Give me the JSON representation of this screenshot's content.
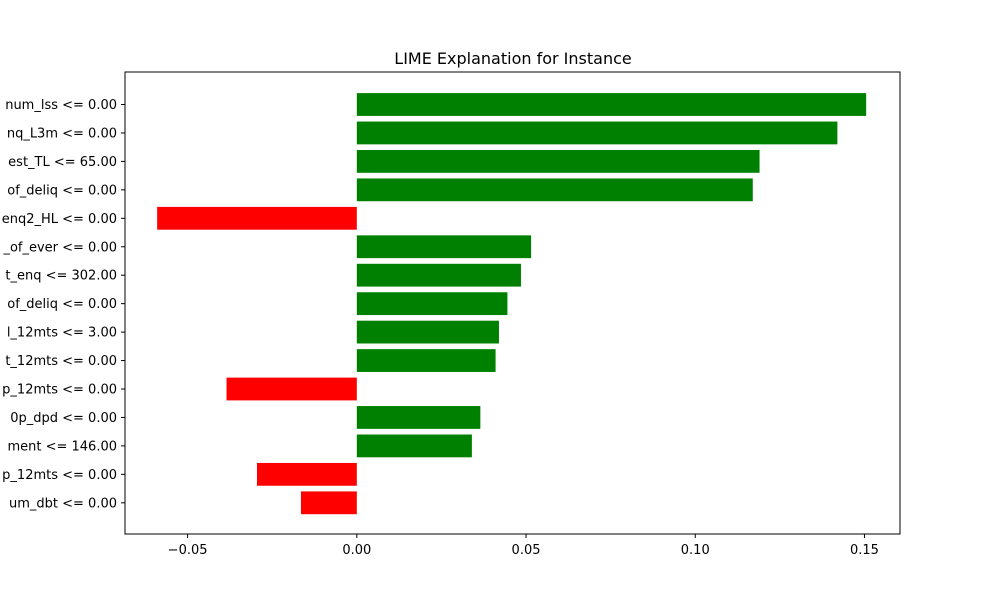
{
  "chart_data": {
    "type": "bar",
    "orientation": "horizontal",
    "title": "LIME Explanation for Instance",
    "xlabel": "",
    "ylabel": "",
    "xlim": [
      -0.0685,
      0.1605
    ],
    "xticks": [
      -0.05,
      0.0,
      0.05,
      0.1,
      0.15
    ],
    "xtick_labels": [
      "−0.05",
      "0.00",
      "0.05",
      "0.10",
      "0.15"
    ],
    "categories": [
      "num_lss <= 0.00",
      "nq_L3m <= 0.00",
      "est_TL <= 65.00",
      "of_deliq <= 0.00",
      "enq2_HL <= 0.00",
      "_of_ever <= 0.00",
      "t_enq <= 302.00",
      "of_deliq <= 0.00",
      "l_12mts <= 3.00",
      "t_12mts <= 0.00",
      "p_12mts <= 0.00",
      "0p_dpd <= 0.00",
      "ment <= 146.00",
      "p_12mts <= 0.00",
      "um_dbt <= 0.00"
    ],
    "values": [
      0.1505,
      0.142,
      0.119,
      0.117,
      -0.059,
      0.0515,
      0.0485,
      0.0445,
      0.042,
      0.041,
      -0.0385,
      0.0365,
      0.034,
      -0.0295,
      -0.0165
    ],
    "positive_color": "#008000",
    "negative_color": "#ff0000",
    "grid": false,
    "legend": "none"
  }
}
